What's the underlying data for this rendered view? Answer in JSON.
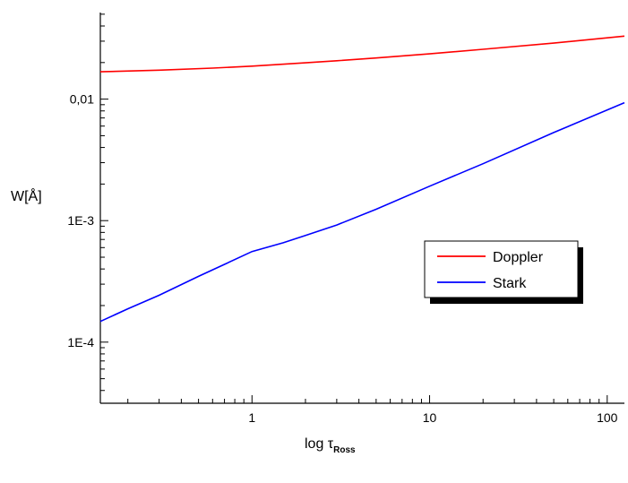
{
  "chart_data": {
    "type": "line",
    "xlabel": "log τ",
    "xlabel_sub": "Ross",
    "ylabel": "W[Å]",
    "x_scale": "log",
    "y_scale": "log",
    "xlim": [
      0.14,
      125
    ],
    "ylim": [
      3.14e-05,
      0.0516
    ],
    "x_ticks": [
      {
        "value": 1,
        "label": "1"
      },
      {
        "value": 10,
        "label": "10"
      },
      {
        "value": 100,
        "label": "100"
      }
    ],
    "y_ticks": [
      {
        "value": 0.0001,
        "label": "1E-4"
      },
      {
        "value": 0.001,
        "label": "1E-3"
      },
      {
        "value": 0.01,
        "label": "0,01"
      }
    ],
    "grid": false,
    "legend_position": "right",
    "series": [
      {
        "name": "Doppler",
        "color": "#ff0000",
        "x": [
          0.14,
          0.3,
          0.6,
          1,
          2,
          3,
          5,
          10,
          20,
          50,
          125
        ],
        "y": [
          0.0168,
          0.0173,
          0.018,
          0.0187,
          0.0199,
          0.0207,
          0.0218,
          0.0236,
          0.0257,
          0.0289,
          0.033
        ]
      },
      {
        "name": "Stark",
        "color": "#0000ff",
        "x": [
          0.14,
          0.2,
          0.3,
          0.5,
          0.7,
          1,
          1.5,
          2,
          3,
          5,
          10,
          20,
          50,
          125
        ],
        "y": [
          0.000148,
          0.000188,
          0.000243,
          0.000348,
          0.000437,
          0.000557,
          0.000658,
          0.000754,
          0.000921,
          0.00124,
          0.00192,
          0.00294,
          0.00531,
          0.00935
        ]
      }
    ]
  }
}
